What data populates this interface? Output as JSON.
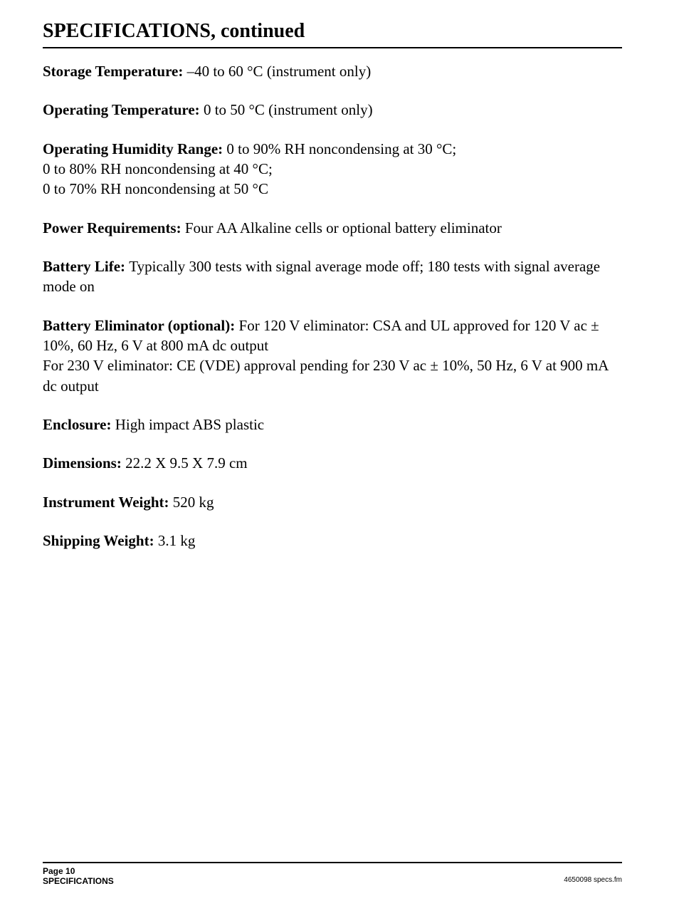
{
  "title": "SPECIFICATIONS, continued",
  "specs": [
    {
      "label": "Storage Temperature: ",
      "value": "–40 to 60 °C (instrument only)"
    },
    {
      "label": "Operating Temperature: ",
      "value": "0 to 50 °C (instrument only)"
    },
    {
      "label": "Operating Humidity Range: ",
      "value": "0 to 90% RH noncondensing at 30 °C;\n0 to 80% RH noncondensing at 40 °C;\n0 to 70% RH noncondensing at 50 °C"
    },
    {
      "label": "Power Requirements: ",
      "value": "Four AA Alkaline cells or optional battery eliminator"
    },
    {
      "label": "Battery Life: ",
      "value": "Typically 300 tests with signal average mode off; 180 tests with signal average mode on"
    },
    {
      "label": "Battery Eliminator (optional): ",
      "value": "For 120 V eliminator: CSA and UL approved for 120 V ac ± 10%, 60 Hz, 6 V at 800 mA dc output\nFor 230 V eliminator: CE (VDE) approval pending for 230 V ac ± 10%, 50 Hz, 6 V at 900 mA dc output"
    },
    {
      "label": "Enclosure: ",
      "value": "High impact ABS plastic"
    },
    {
      "label": "Dimensions: ",
      "value": "22.2 X 9.5 X 7.9 cm"
    },
    {
      "label": "Instrument Weight: ",
      "value": "520 kg"
    },
    {
      "label": "Shipping Weight: ",
      "value": "3.1 kg"
    }
  ],
  "footer": {
    "page": "Page 10",
    "section": "SPECIFICATIONS",
    "docref": "4650098 specs.fm"
  },
  "style": {
    "body_font": "Times New Roman",
    "footer_font": "Arial",
    "title_fontsize": 28,
    "body_fontsize": 21,
    "footer_fontsize_bold": 12,
    "footer_fontsize_small": 10,
    "rule_color": "#000000",
    "background": "#ffffff",
    "text_color": "#000000"
  }
}
